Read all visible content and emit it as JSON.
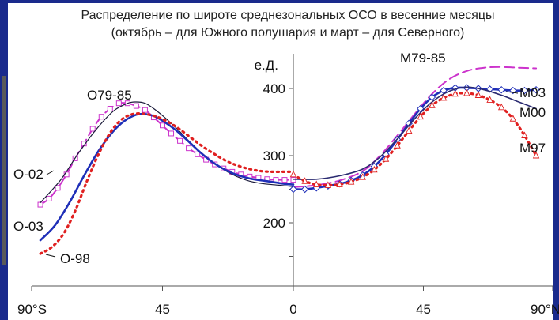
{
  "chart_data": {
    "type": "line",
    "title": "Распределение по широте среднезональных ОСО в весенние месяцы",
    "subtitle": "(октябрь – для Южного полушария и март – для Северного)",
    "ylabel": "е.Д.",
    "ylim": [
      150,
      430
    ],
    "yticks": [
      "400",
      "300",
      "200"
    ],
    "ytick_values": [
      400,
      300,
      200
    ],
    "xticks": [
      "90°S",
      "45",
      "0",
      "45",
      "90°N"
    ],
    "panels": [
      {
        "hemisphere": "south",
        "xlim": [
          -90,
          0
        ],
        "series": [
          {
            "name": "O79-85",
            "color": "#cc33cc",
            "style": "dash-square",
            "x": [
              -87,
              -84,
              -81,
              -78,
              -75,
              -72,
              -69,
              -66,
              -63,
              -60,
              -57,
              -54,
              -51,
              -48,
              -45,
              -42,
              -39,
              -36,
              -33,
              -30,
              -27,
              -24,
              -21,
              -18,
              -15,
              -12,
              -9,
              -6,
              -3,
              0
            ],
            "y": [
              227,
              236,
              252,
              272,
              296,
              318,
              340,
              358,
              370,
              378,
              378,
              374,
              368,
              357,
              345,
              333,
              322,
              311,
              302,
              294,
              287,
              281,
              276,
              272,
              269,
              267,
              265,
              264,
              264,
              264
            ]
          },
          {
            "name": "O-02",
            "color": "#1a1a3a",
            "style": "solid-thin",
            "x": [
              -87,
              -80,
              -74,
              -68,
              -62,
              -57,
              -54,
              -51,
              -48,
              -44,
              -40,
              -35,
              -30,
              -25,
              -20,
              -15,
              -10,
              -5,
              0
            ],
            "y": [
              230,
              264,
              303,
              338,
              366,
              378,
              380,
              378,
              370,
              356,
              340,
              318,
              298,
              282,
              270,
              262,
              258,
              256,
              254
            ]
          },
          {
            "name": "O-03",
            "color": "#1f2fb8",
            "style": "solid-thick",
            "x": [
              -87,
              -82,
              -77,
              -72,
              -67,
              -62,
              -58,
              -54,
              -51,
              -48,
              -45,
              -41,
              -37,
              -32,
              -27,
              -21,
              -15,
              -9,
              -3,
              0
            ],
            "y": [
              174,
              196,
              230,
              270,
              307,
              336,
              352,
              361,
              362,
              359,
              352,
              340,
              325,
              305,
              288,
              274,
              266,
              262,
              258,
              257
            ]
          },
          {
            "name": "O-98",
            "color": "#e02020",
            "style": "dotted",
            "x": [
              -87,
              -83,
              -79,
              -75,
              -71,
              -67,
              -63,
              -59,
              -55,
              -51,
              -47,
              -43,
              -39,
              -35,
              -31,
              -27,
              -23,
              -19,
              -15,
              -11,
              -7,
              -3,
              0
            ],
            "y": [
              154,
              164,
              184,
              218,
              262,
              302,
              334,
              354,
              362,
              362,
              358,
              350,
              339,
              326,
              313,
              302,
              292,
              285,
              280,
              277,
              276,
              276,
              276
            ]
          }
        ]
      },
      {
        "hemisphere": "north",
        "xlim": [
          0,
          90
        ],
        "series": [
          {
            "name": "M79-85",
            "color": "#cc33cc",
            "style": "dash",
            "x": [
              0,
              8,
              16,
              24,
              30,
              36,
              42,
              48,
              54,
              60,
              66,
              72,
              78,
              84
            ],
            "y": [
              253,
              256,
              263,
              277,
              300,
              330,
              362,
              392,
              414,
              426,
              431,
              432,
              431,
              430
            ]
          },
          {
            "name": "M03",
            "color": "#1f2fb8",
            "style": "solid-thick-diamond",
            "x": [
              0,
              4,
              8,
              12,
              16,
              20,
              24,
              28,
              32,
              36,
              40,
              44,
              48,
              52,
              56,
              60,
              64,
              68,
              72,
              76,
              80,
              84
            ],
            "y": [
              250,
              250,
              252,
              255,
              258,
              263,
              271,
              284,
              302,
              324,
              348,
              370,
              387,
              397,
              401,
              401,
              400,
              399,
              398,
              397,
              397,
              398
            ]
          },
          {
            "name": "M00",
            "color": "#2a2a70",
            "style": "solid",
            "x": [
              0,
              8,
              16,
              24,
              30,
              36,
              42,
              48,
              54,
              60,
              66,
              72,
              78,
              84
            ],
            "y": [
              265,
              265,
              270,
              280,
              298,
              325,
              355,
              380,
              396,
              402,
              398,
              390,
              380,
              370
            ]
          },
          {
            "name": "M97",
            "color": "#e02020",
            "style": "dot-triangle",
            "x": [
              0,
              4,
              8,
              12,
              16,
              20,
              24,
              28,
              32,
              36,
              40,
              44,
              48,
              52,
              56,
              60,
              64,
              68,
              72,
              76,
              80,
              84
            ],
            "y": [
              272,
              262,
              257,
              256,
              257,
              261,
              268,
              279,
              295,
              315,
              337,
              358,
              375,
              386,
              392,
              393,
              390,
              383,
              372,
              355,
              330,
              300
            ]
          }
        ]
      }
    ]
  }
}
